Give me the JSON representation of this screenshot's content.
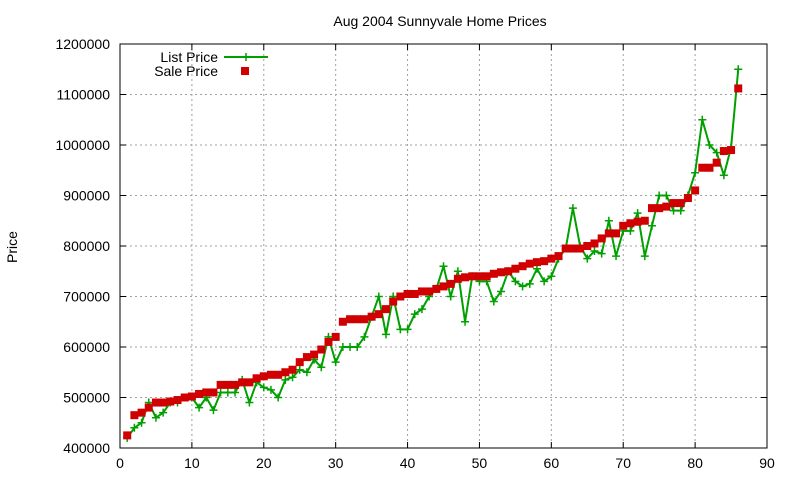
{
  "chart_data": {
    "type": "line",
    "title": "Aug 2004 Sunnyvale Home Prices",
    "xlabel": "",
    "ylabel": "Price",
    "xlim": [
      0,
      90
    ],
    "ylim": [
      400000,
      1200000
    ],
    "x_ticks": [
      "0",
      "10",
      "20",
      "30",
      "40",
      "50",
      "60",
      "70",
      "80",
      "90"
    ],
    "y_ticks": [
      "400000",
      "500000",
      "600000",
      "700000",
      "800000",
      "900000",
      "1000000",
      "1100000",
      "1200000"
    ],
    "grid": true,
    "legend_position": "top-left",
    "x": [
      1,
      2,
      3,
      4,
      5,
      6,
      7,
      8,
      9,
      10,
      11,
      12,
      13,
      14,
      15,
      16,
      17,
      18,
      19,
      20,
      21,
      22,
      23,
      24,
      25,
      26,
      27,
      28,
      29,
      30,
      31,
      32,
      33,
      34,
      35,
      36,
      37,
      38,
      39,
      40,
      41,
      42,
      43,
      44,
      45,
      46,
      47,
      48,
      49,
      50,
      51,
      52,
      53,
      54,
      55,
      56,
      57,
      58,
      59,
      60,
      61,
      62,
      63,
      64,
      65,
      66,
      67,
      68,
      69,
      70,
      71,
      72,
      73,
      74,
      75,
      76,
      77,
      78,
      79,
      80,
      81,
      82,
      83,
      84,
      85,
      86
    ],
    "series": [
      {
        "name": "List Price",
        "color": "#00a000",
        "style": "line-plus",
        "values": [
          420000,
          440000,
          450000,
          490000,
          460000,
          470000,
          490000,
          490000,
          500000,
          500000,
          480000,
          500000,
          475000,
          510000,
          510000,
          510000,
          535000,
          490000,
          530000,
          520000,
          515000,
          500000,
          535000,
          540000,
          555000,
          550000,
          575000,
          560000,
          620000,
          570000,
          600000,
          600000,
          600000,
          620000,
          660000,
          700000,
          625000,
          700000,
          635000,
          635000,
          665000,
          675000,
          700000,
          715000,
          760000,
          700000,
          750000,
          650000,
          740000,
          730000,
          730000,
          690000,
          710000,
          750000,
          730000,
          720000,
          725000,
          755000,
          730000,
          740000,
          775000,
          795000,
          875000,
          800000,
          775000,
          790000,
          785000,
          850000,
          780000,
          830000,
          830000,
          865000,
          780000,
          840000,
          900000,
          900000,
          870000,
          870000,
          900000,
          945000,
          1050000,
          1000000,
          985000,
          940000,
          995000,
          1150000
        ]
      },
      {
        "name": "Sale Price",
        "color": "#d00000",
        "style": "square",
        "values": [
          425000,
          465000,
          470000,
          480000,
          490000,
          490000,
          492000,
          495000,
          500000,
          502000,
          507000,
          510000,
          510000,
          525000,
          525000,
          525000,
          530000,
          530000,
          538000,
          542000,
          545000,
          545000,
          550000,
          555000,
          570000,
          580000,
          585000,
          595000,
          610000,
          620000,
          650000,
          655000,
          655000,
          655000,
          660000,
          665000,
          675000,
          690000,
          700000,
          705000,
          705000,
          710000,
          710000,
          715000,
          720000,
          725000,
          735000,
          738000,
          740000,
          740000,
          740000,
          745000,
          748000,
          750000,
          755000,
          760000,
          765000,
          768000,
          770000,
          775000,
          780000,
          795000,
          795000,
          795000,
          800000,
          805000,
          815000,
          825000,
          825000,
          840000,
          845000,
          848000,
          850000,
          875000,
          875000,
          878000,
          885000,
          885000,
          895000,
          910000,
          955000,
          955000,
          965000,
          988000,
          990000,
          1112000
        ]
      }
    ]
  }
}
